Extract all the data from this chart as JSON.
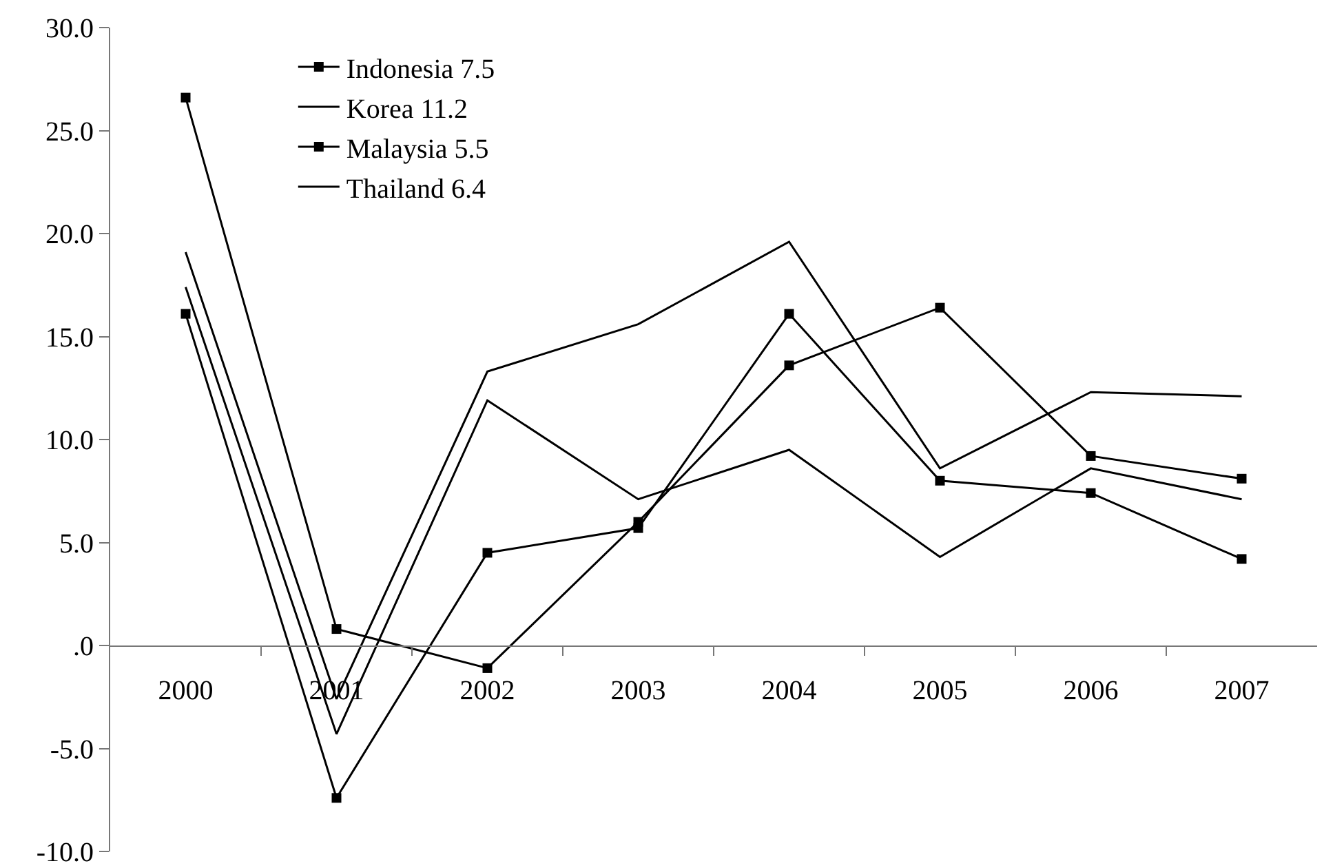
{
  "chart_data": {
    "type": "line",
    "categories": [
      "2000",
      "2001",
      "2002",
      "2003",
      "2004",
      "2005",
      "2006",
      "2007"
    ],
    "series": [
      {
        "name": "Indonesia 7.5",
        "color": "#000000",
        "marker": "square",
        "values": [
          26.6,
          0.8,
          -1.1,
          6.0,
          13.6,
          16.4,
          9.2,
          8.1
        ]
      },
      {
        "name": "Korea 11.2",
        "color": "#000000",
        "marker": "none",
        "values": [
          19.1,
          -2.6,
          13.3,
          15.6,
          19.6,
          8.6,
          12.3,
          12.1
        ]
      },
      {
        "name": "Malaysia 5.5",
        "color": "#000000",
        "marker": "square",
        "values": [
          16.1,
          -7.4,
          4.5,
          5.7,
          16.1,
          8.0,
          7.4,
          4.2
        ]
      },
      {
        "name": "Thailand 6.4",
        "color": "#000000",
        "marker": "none",
        "values": [
          17.4,
          -4.3,
          11.9,
          7.1,
          9.5,
          4.3,
          8.6,
          7.1
        ]
      }
    ],
    "ylim": [
      -10,
      30
    ],
    "yticks": [
      {
        "value": -10,
        "label": "-10.0"
      },
      {
        "value": -5,
        "label": "-5.0"
      },
      {
        "value": 0,
        "label": ".0"
      },
      {
        "value": 5,
        "label": "5.0"
      },
      {
        "value": 10,
        "label": "10.0"
      },
      {
        "value": 15,
        "label": "15.0"
      },
      {
        "value": 20,
        "label": "20.0"
      },
      {
        "value": 25,
        "label": "25.0"
      },
      {
        "value": 30,
        "label": "30.0"
      }
    ],
    "grid": false,
    "legend": "top left",
    "line_style": "solid"
  }
}
